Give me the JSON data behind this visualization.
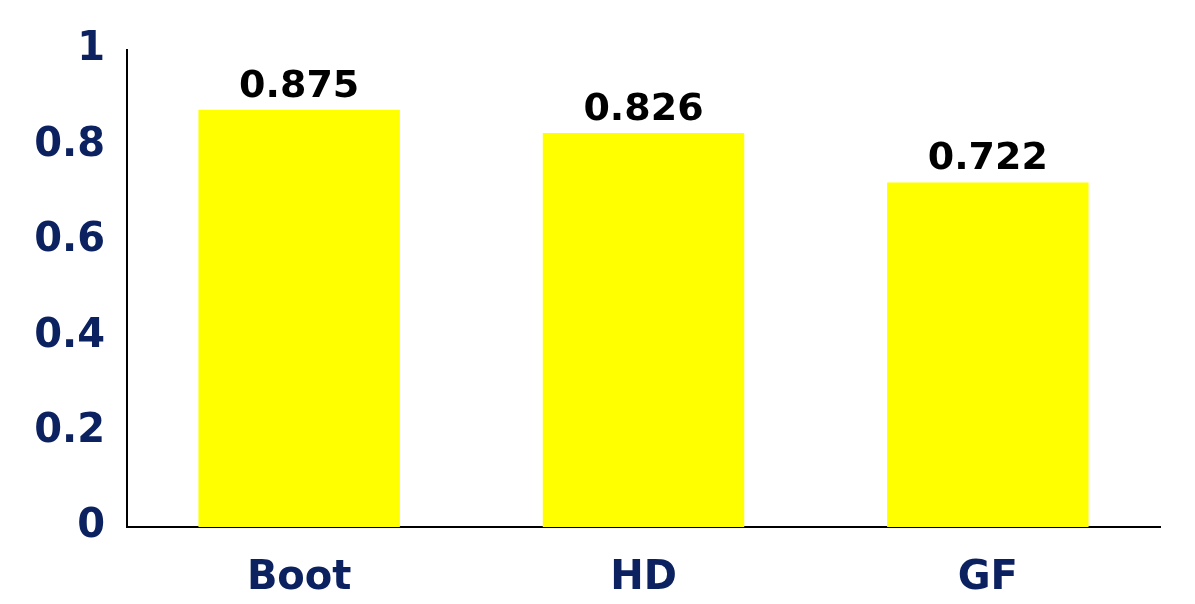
{
  "chart_data": {
    "type": "bar",
    "categories": [
      "Boot",
      "HD",
      "GF"
    ],
    "values": [
      0.875,
      0.826,
      0.722
    ],
    "color": "#ffff00",
    "ylim": [
      0,
      1
    ],
    "yticks": [
      0,
      0.2,
      0.4,
      0.6,
      0.8,
      1
    ],
    "data_labels": true
  }
}
